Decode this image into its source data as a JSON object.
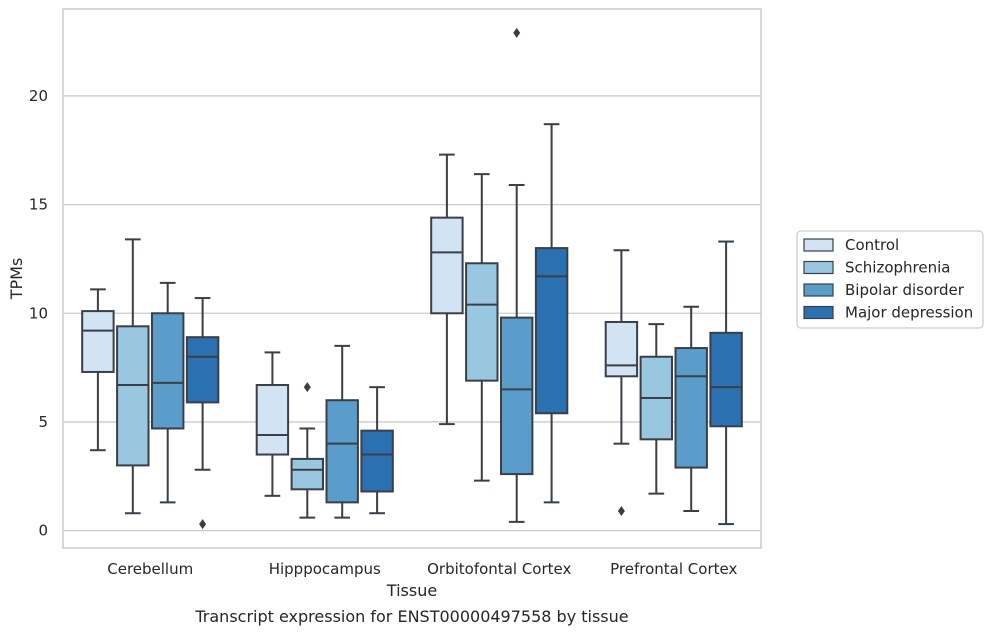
{
  "chart_data": {
    "type": "box",
    "caption": "Transcript expression for ENST00000497558 by tissue",
    "xlabel": "Tissue",
    "ylabel": "TPMs",
    "ylim": [
      -0.8,
      24
    ],
    "yticks": [
      0,
      5,
      10,
      15,
      20
    ],
    "grid": "horizontal",
    "legend_position": "right",
    "categories": [
      "Cerebellum",
      "Hipppocampus",
      "Orbitofontal Cortex",
      "Prefrontal Cortex"
    ],
    "series": [
      {
        "name": "Control",
        "color": "#d2e3f3",
        "boxes": [
          {
            "whislo": 3.7,
            "q1": 7.3,
            "med": 9.2,
            "q3": 10.1,
            "whishi": 11.1,
            "fliers": []
          },
          {
            "whislo": 1.6,
            "q1": 3.5,
            "med": 4.4,
            "q3": 6.7,
            "whishi": 8.2,
            "fliers": []
          },
          {
            "whislo": 4.9,
            "q1": 10.0,
            "med": 12.8,
            "q3": 14.4,
            "whishi": 17.3,
            "fliers": []
          },
          {
            "whislo": 4.0,
            "q1": 7.1,
            "med": 7.6,
            "q3": 9.6,
            "whishi": 12.9,
            "fliers": [
              0.9
            ]
          }
        ]
      },
      {
        "name": "Schizophrenia",
        "color": "#9ac7e0",
        "boxes": [
          {
            "whislo": 0.8,
            "q1": 3.0,
            "med": 6.7,
            "q3": 9.4,
            "whishi": 13.4,
            "fliers": []
          },
          {
            "whislo": 0.6,
            "q1": 1.9,
            "med": 2.8,
            "q3": 3.3,
            "whishi": 4.7,
            "fliers": [
              6.6
            ]
          },
          {
            "whislo": 2.3,
            "q1": 6.9,
            "med": 10.4,
            "q3": 12.3,
            "whishi": 16.4,
            "fliers": []
          },
          {
            "whislo": 1.7,
            "q1": 4.2,
            "med": 6.1,
            "q3": 8.0,
            "whishi": 9.5,
            "fliers": []
          }
        ]
      },
      {
        "name": "Bipolar disorder",
        "color": "#5b9dca",
        "boxes": [
          {
            "whislo": 1.3,
            "q1": 4.7,
            "med": 6.8,
            "q3": 10.0,
            "whishi": 11.4,
            "fliers": []
          },
          {
            "whislo": 0.6,
            "q1": 1.3,
            "med": 4.0,
            "q3": 6.0,
            "whishi": 8.5,
            "fliers": []
          },
          {
            "whislo": 0.4,
            "q1": 2.6,
            "med": 6.5,
            "q3": 9.8,
            "whishi": 15.9,
            "fliers": [
              22.9
            ]
          },
          {
            "whislo": 0.9,
            "q1": 2.9,
            "med": 7.1,
            "q3": 8.4,
            "whishi": 10.3,
            "fliers": []
          }
        ]
      },
      {
        "name": "Major depression",
        "color": "#2b70b0",
        "boxes": [
          {
            "whislo": 2.8,
            "q1": 5.9,
            "med": 8.0,
            "q3": 8.9,
            "whishi": 10.7,
            "fliers": [
              0.3
            ]
          },
          {
            "whislo": 0.8,
            "q1": 1.8,
            "med": 3.5,
            "q3": 4.6,
            "whishi": 6.6,
            "fliers": []
          },
          {
            "whislo": 1.3,
            "q1": 5.4,
            "med": 11.7,
            "q3": 13.0,
            "whishi": 18.7,
            "fliers": []
          },
          {
            "whislo": 0.3,
            "q1": 4.8,
            "med": 6.6,
            "q3": 9.1,
            "whishi": 13.3,
            "fliers": []
          }
        ]
      }
    ]
  }
}
